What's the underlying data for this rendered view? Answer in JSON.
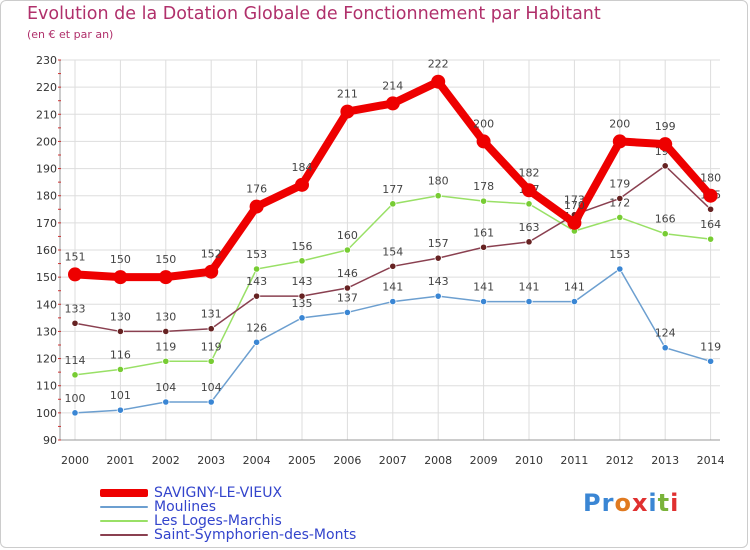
{
  "header": {
    "title": "Evolution de la Dotation Globale de Fonctionnement par Habitant",
    "subtitle": "(en € et par an)"
  },
  "logo": {
    "text": "Proxiti"
  },
  "chart_data": {
    "type": "line",
    "title": "Evolution de la Dotation Globale de Fonctionnement par Habitant",
    "subtitle": "(en € et par an)",
    "xlabel": "",
    "ylabel": "",
    "ylim": [
      90,
      230
    ],
    "yticks": [
      90,
      100,
      110,
      120,
      130,
      140,
      150,
      160,
      170,
      180,
      190,
      200,
      210,
      220,
      230
    ],
    "grid": true,
    "legend_position": "bottom-left",
    "categories": [
      "2000",
      "2001",
      "2002",
      "2003",
      "2004",
      "2005",
      "2006",
      "2007",
      "2008",
      "2009",
      "2010",
      "2011",
      "2012",
      "2013",
      "2014"
    ],
    "series": [
      {
        "name": "SAVIGNY-LE-VIEUX",
        "color": "#ee0000",
        "emphasis": true,
        "values": [
          151,
          150,
          150,
          152,
          176,
          184,
          211,
          214,
          222,
          200,
          182,
          170,
          200,
          199,
          180
        ]
      },
      {
        "name": "Moulines",
        "color": "#6c9fd0",
        "marker": "#3a86d4",
        "values": [
          100,
          101,
          104,
          104,
          126,
          135,
          137,
          141,
          143,
          141,
          141,
          141,
          153,
          124,
          119
        ]
      },
      {
        "name": "Les Loges-Marchis",
        "color": "#99e066",
        "marker": "#77cc33",
        "values": [
          114,
          116,
          119,
          119,
          153,
          156,
          160,
          177,
          180,
          178,
          177,
          167,
          172,
          166,
          164
        ]
      },
      {
        "name": "Saint-Symphorien-des-Monts",
        "color": "#8a4050",
        "marker": "#662222",
        "values": [
          133,
          130,
          130,
          131,
          143,
          143,
          146,
          154,
          157,
          161,
          163,
          173,
          179,
          191,
          175
        ]
      }
    ]
  }
}
